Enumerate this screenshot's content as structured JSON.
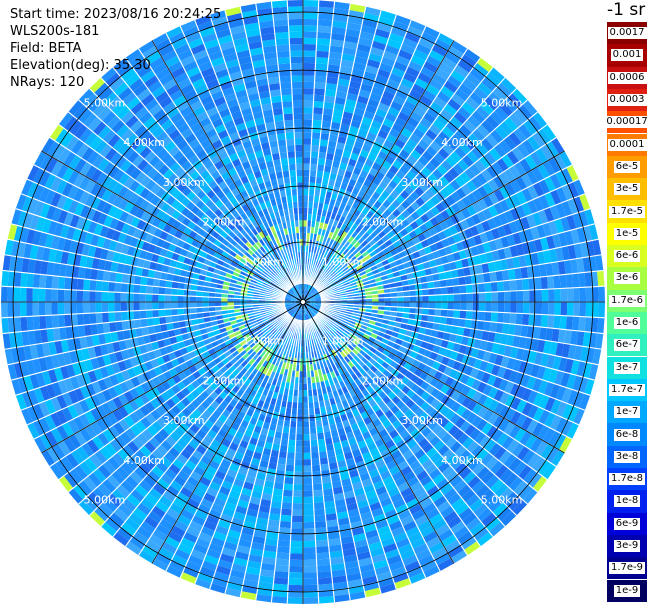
{
  "header": {
    "start_time": "Start time: 2023/08/16 20:24:25",
    "instrument": "WLS200s-181",
    "field": "Field: BETA",
    "elevation": "Elevation(deg): 35.30",
    "nrays": "NRays: 120"
  },
  "units_label": "-1 sr",
  "colorbar": [
    {
      "label": "0.0017",
      "color": "#8a0000"
    },
    {
      "label": "0.001",
      "color": "#a80000"
    },
    {
      "label": "0.0006",
      "color": "#c81010"
    },
    {
      "label": "0.0003",
      "color": "#e02010"
    },
    {
      "label": "0.00017",
      "color": "#ff5000"
    },
    {
      "label": "0.0001",
      "color": "#ff7a00"
    },
    {
      "label": "6e-5",
      "color": "#ff9c00"
    },
    {
      "label": "3e-5",
      "color": "#ffbf00"
    },
    {
      "label": "1.7e-5",
      "color": "#ffe000"
    },
    {
      "label": "1e-5",
      "color": "#ffff00"
    },
    {
      "label": "6e-6",
      "color": "#d8ff20"
    },
    {
      "label": "3e-6",
      "color": "#a8ff40"
    },
    {
      "label": "1.7e-6",
      "color": "#7cff70"
    },
    {
      "label": "1e-6",
      "color": "#50ff98"
    },
    {
      "label": "6e-7",
      "color": "#30f0c0"
    },
    {
      "label": "3e-7",
      "color": "#10e0e0"
    },
    {
      "label": "1.7e-7",
      "color": "#00c8ff"
    },
    {
      "label": "1e-7",
      "color": "#00a8ff"
    },
    {
      "label": "6e-8",
      "color": "#0088ff"
    },
    {
      "label": "3e-8",
      "color": "#0066ff"
    },
    {
      "label": "1.7e-8",
      "color": "#0040ff"
    },
    {
      "label": "1e-8",
      "color": "#0020f0"
    },
    {
      "label": "6e-9",
      "color": "#0000d8"
    },
    {
      "label": "3e-9",
      "color": "#0000b0"
    },
    {
      "label": "1.7e-9",
      "color": "#000090"
    },
    {
      "label": "1e-9",
      "color": "#000060"
    }
  ],
  "chart_data": {
    "type": "heatmap",
    "projection": "polar-ppi",
    "field": "BETA",
    "nrays": 120,
    "max_range_km": 5.0,
    "range_ring_labels": [
      "1.00km",
      "2.00km",
      "3.00km",
      "4.00km",
      "5.00km"
    ],
    "range_rings_km": [
      1,
      2,
      3,
      4,
      5
    ],
    "spokes_deg": [
      0,
      30,
      60,
      90,
      120,
      150,
      180,
      210,
      240,
      270,
      300,
      330
    ],
    "colors": {
      "dominant": "#1e90ff",
      "secondary": "#00bfff",
      "highlight": "#9bf34a",
      "ring": "#000000",
      "ray_gap": "#ffffff"
    },
    "features": [
      {
        "description": "enhanced backscatter ring",
        "range_km": [
          0.95,
          1.35
        ],
        "color": "#6cf26a"
      },
      {
        "description": "enhanced backscatter at far range",
        "range_km": [
          4.9,
          5.0
        ],
        "color": "#c6ff3a"
      }
    ]
  }
}
